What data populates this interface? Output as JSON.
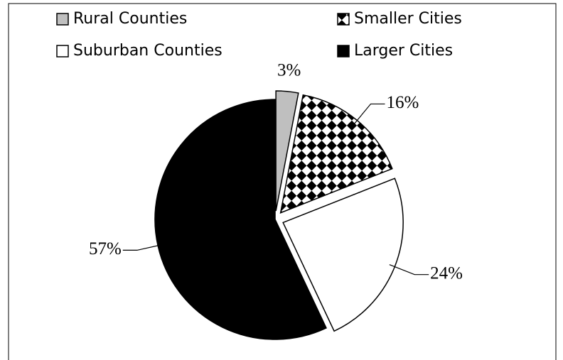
{
  "chart_data": {
    "type": "pie",
    "categories": [
      "Rural Counties",
      "Smaller Cities",
      "Suburban Counties",
      "Larger Cities"
    ],
    "values": [
      3,
      16,
      24,
      57
    ],
    "value_labels": [
      "3%",
      "16%",
      "24%",
      "57%"
    ],
    "colors": [
      "#bfbfbf",
      "#000000",
      "#ffffff",
      "#000000"
    ],
    "patterns": [
      "solid",
      "checker",
      "solid",
      "solid"
    ],
    "legend": "top"
  }
}
